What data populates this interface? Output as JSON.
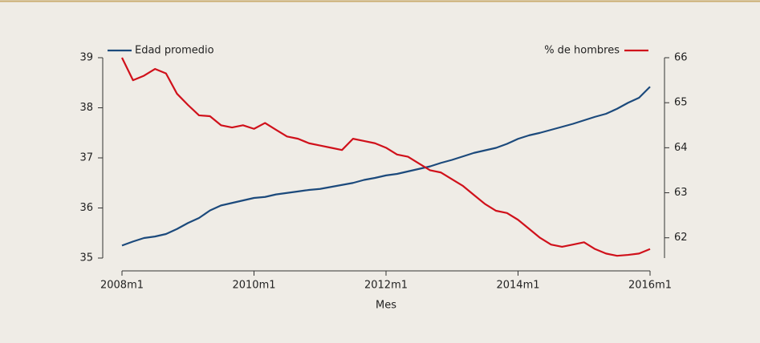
{
  "chart_data": {
    "type": "line",
    "x_label": "Mes",
    "x": [
      2008.0,
      2008.167,
      2008.333,
      2008.5,
      2008.667,
      2008.833,
      2009.0,
      2009.167,
      2009.333,
      2009.5,
      2009.667,
      2009.833,
      2010.0,
      2010.167,
      2010.333,
      2010.5,
      2010.667,
      2010.833,
      2011.0,
      2011.167,
      2011.333,
      2011.5,
      2011.667,
      2011.833,
      2012.0,
      2012.167,
      2012.333,
      2012.5,
      2012.667,
      2012.833,
      2013.0,
      2013.167,
      2013.333,
      2013.5,
      2013.667,
      2013.833,
      2014.0,
      2014.167,
      2014.333,
      2014.5,
      2014.667,
      2014.833,
      2015.0,
      2015.167,
      2015.333,
      2015.5,
      2015.667,
      2015.833,
      2016.0
    ],
    "series": [
      {
        "name": "Edad promedio",
        "color": "#1c4a7c",
        "axis": "y",
        "values": [
          35.25,
          35.33,
          35.4,
          35.43,
          35.48,
          35.58,
          35.7,
          35.8,
          35.95,
          36.05,
          36.1,
          36.15,
          36.2,
          36.22,
          36.27,
          36.3,
          36.33,
          36.36,
          36.38,
          36.42,
          36.46,
          36.5,
          36.56,
          36.6,
          36.65,
          36.68,
          36.73,
          36.78,
          36.83,
          36.9,
          36.96,
          37.03,
          37.1,
          37.15,
          37.2,
          37.28,
          37.38,
          37.45,
          37.5,
          37.56,
          37.62,
          37.68,
          37.75,
          37.82,
          37.88,
          37.98,
          38.1,
          38.2,
          38.42
        ]
      },
      {
        "name": "% de hombres",
        "color": "#d0111b",
        "axis": "y2",
        "values": [
          66.0,
          65.5,
          65.6,
          65.75,
          65.65,
          65.2,
          64.95,
          64.72,
          64.7,
          64.5,
          64.45,
          64.5,
          64.42,
          64.55,
          64.4,
          64.25,
          64.2,
          64.1,
          64.05,
          64.0,
          63.95,
          64.2,
          64.15,
          64.1,
          64.0,
          63.85,
          63.8,
          63.65,
          63.5,
          63.45,
          63.3,
          63.15,
          62.95,
          62.75,
          62.6,
          62.55,
          62.4,
          62.2,
          62.0,
          61.85,
          61.8,
          61.85,
          61.9,
          61.75,
          61.65,
          61.6,
          61.62,
          61.65,
          61.75
        ]
      }
    ],
    "xlim": [
      2008,
      2016
    ],
    "xticks": [
      {
        "value": 2008,
        "label": "2008m1"
      },
      {
        "value": 2010,
        "label": "2010m1"
      },
      {
        "value": 2012,
        "label": "2012m1"
      },
      {
        "value": 2014,
        "label": "2014m1"
      },
      {
        "value": 2016,
        "label": "2016m1"
      }
    ],
    "ylim": [
      35,
      39
    ],
    "yticks": [
      35,
      36,
      37,
      38,
      39
    ],
    "y2lim": [
      61.55,
      66
    ],
    "y2ticks": [
      62,
      63,
      64,
      65,
      66
    ]
  }
}
